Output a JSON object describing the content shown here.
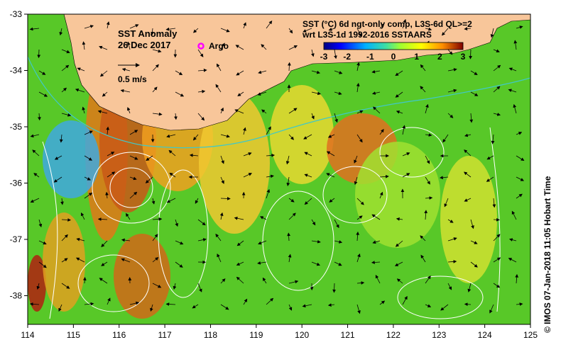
{
  "map": {
    "title_line1": "SST Anomaly",
    "title_line2": "26 Dec 2017",
    "argo_label": "Argo",
    "scale_label": "0.5 m/s",
    "product_line1": "SST (°C) 6d ngt-only comp, L3S-6d QL>=2",
    "product_line2": "wrt L3S-1d 1992-2016 SSTAARS",
    "colorbar_ticks": [
      "-3",
      "-2",
      "-1",
      "0",
      "1",
      "2",
      "3"
    ],
    "credit": "© IMOS 07-Jan-2018 11:05 Hobart Time",
    "lon_ticks": [
      "114",
      "115",
      "116",
      "117",
      "118",
      "119",
      "120",
      "121",
      "122",
      "123",
      "124",
      "125"
    ],
    "lat_ticks": [
      "-33",
      "-34",
      "-35",
      "-36",
      "-37",
      "-38"
    ],
    "colors": {
      "land": "#f8c69a",
      "argo": "#ff00ff",
      "contour": "#ffffff",
      "shelf": "#40c8c8"
    }
  }
}
